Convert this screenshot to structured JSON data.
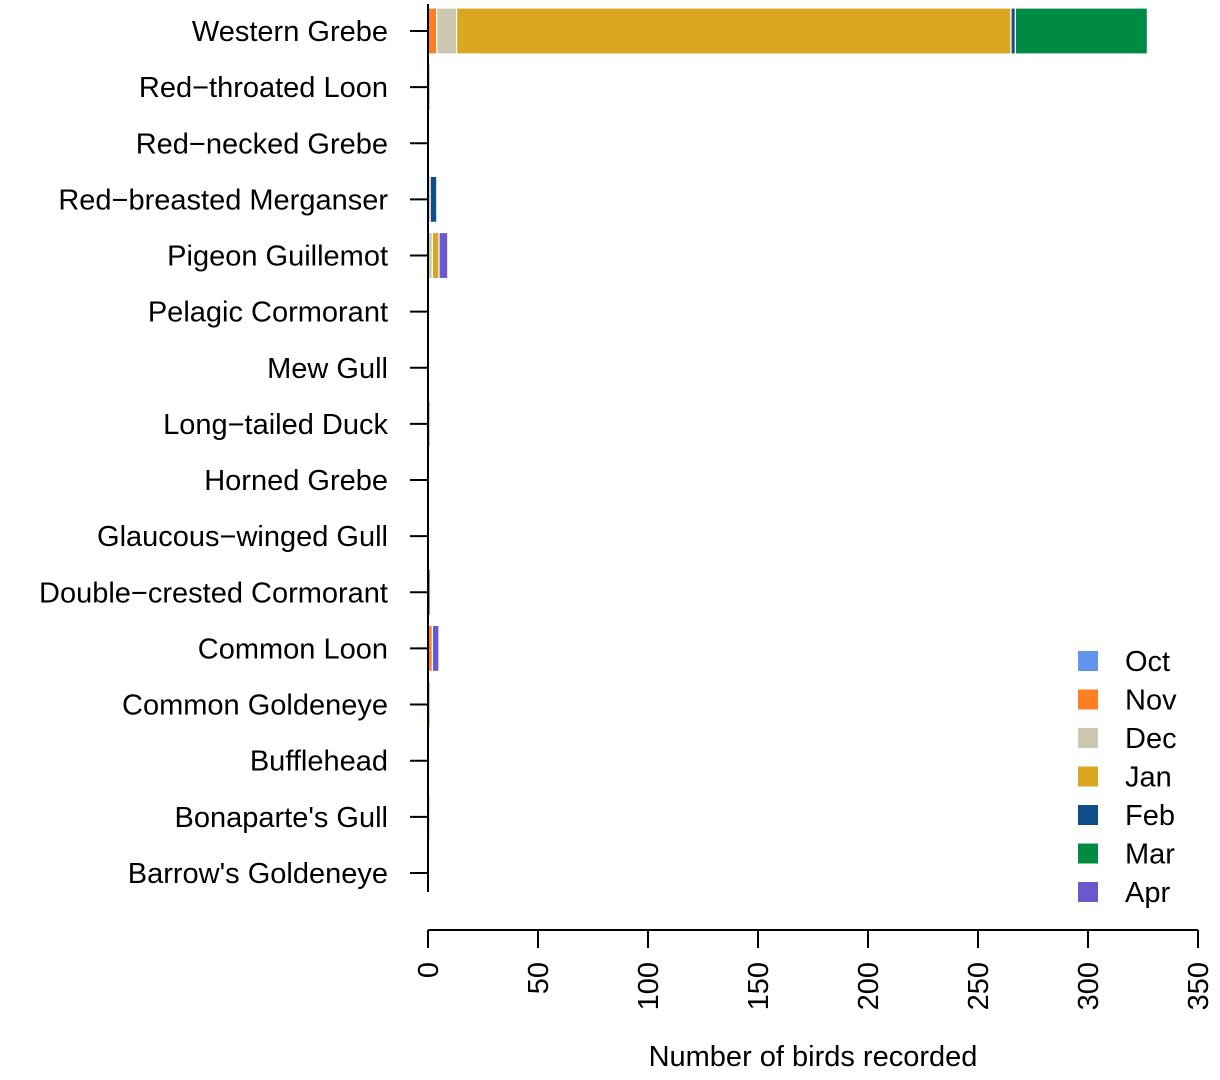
{
  "chart_data": {
    "type": "bar",
    "orientation": "horizontal",
    "stacked": true,
    "title": "",
    "xlabel": "Number of birds recorded",
    "ylabel": "",
    "xlim": [
      0,
      350
    ],
    "x_ticks": [
      0,
      50,
      100,
      150,
      200,
      250,
      300,
      350
    ],
    "grid": false,
    "legend_position": "bottom-right",
    "categories": [
      "Western Grebe",
      "Red−throated Loon",
      "Red−necked Grebe",
      "Red−breasted Merganser",
      "Pigeon Guillemot",
      "Pelagic Cormorant",
      "Mew Gull",
      "Long−tailed Duck",
      "Horned Grebe",
      "Glaucous−winged Gull",
      "Double−crested Cormorant",
      "Common Loon",
      "Common Goldeneye",
      "Bufflehead",
      "Bonaparte's Gull",
      "Barrow's Goldeneye"
    ],
    "series": [
      {
        "name": "Oct",
        "color": "#6495ED",
        "values": [
          0,
          0,
          0,
          0,
          0,
          0,
          0,
          0,
          0,
          0,
          0,
          0,
          0,
          0,
          0,
          0
        ]
      },
      {
        "name": "Nov",
        "color": "#FF7F24",
        "values": [
          4,
          0,
          0,
          0,
          0,
          0,
          0,
          0,
          0,
          0,
          0,
          2,
          0,
          0,
          0,
          0
        ]
      },
      {
        "name": "Dec",
        "color": "#CDC8B1",
        "values": [
          9,
          0,
          0,
          0,
          2,
          0,
          0,
          0,
          0,
          0,
          0,
          0,
          0,
          0,
          1,
          0
        ]
      },
      {
        "name": "Jan",
        "color": "#DAA520",
        "values": [
          252,
          1,
          0,
          1,
          3,
          0,
          0,
          1,
          0,
          0,
          0,
          0,
          1,
          0,
          0,
          0
        ]
      },
      {
        "name": "Feb",
        "color": "#104E8B",
        "values": [
          2,
          0,
          0,
          3,
          0,
          0,
          0,
          0,
          0,
          0,
          1,
          0,
          0,
          0,
          0,
          0
        ]
      },
      {
        "name": "Mar",
        "color": "#008B45",
        "values": [
          60,
          0,
          0,
          0,
          0,
          0,
          0,
          0,
          0,
          0,
          0,
          0,
          0,
          0,
          0,
          0
        ]
      },
      {
        "name": "Apr",
        "color": "#6A5ACD",
        "values": [
          0,
          0,
          0,
          0,
          4,
          0,
          0,
          0,
          0,
          0,
          0,
          3,
          0,
          0,
          0,
          0
        ]
      }
    ]
  }
}
